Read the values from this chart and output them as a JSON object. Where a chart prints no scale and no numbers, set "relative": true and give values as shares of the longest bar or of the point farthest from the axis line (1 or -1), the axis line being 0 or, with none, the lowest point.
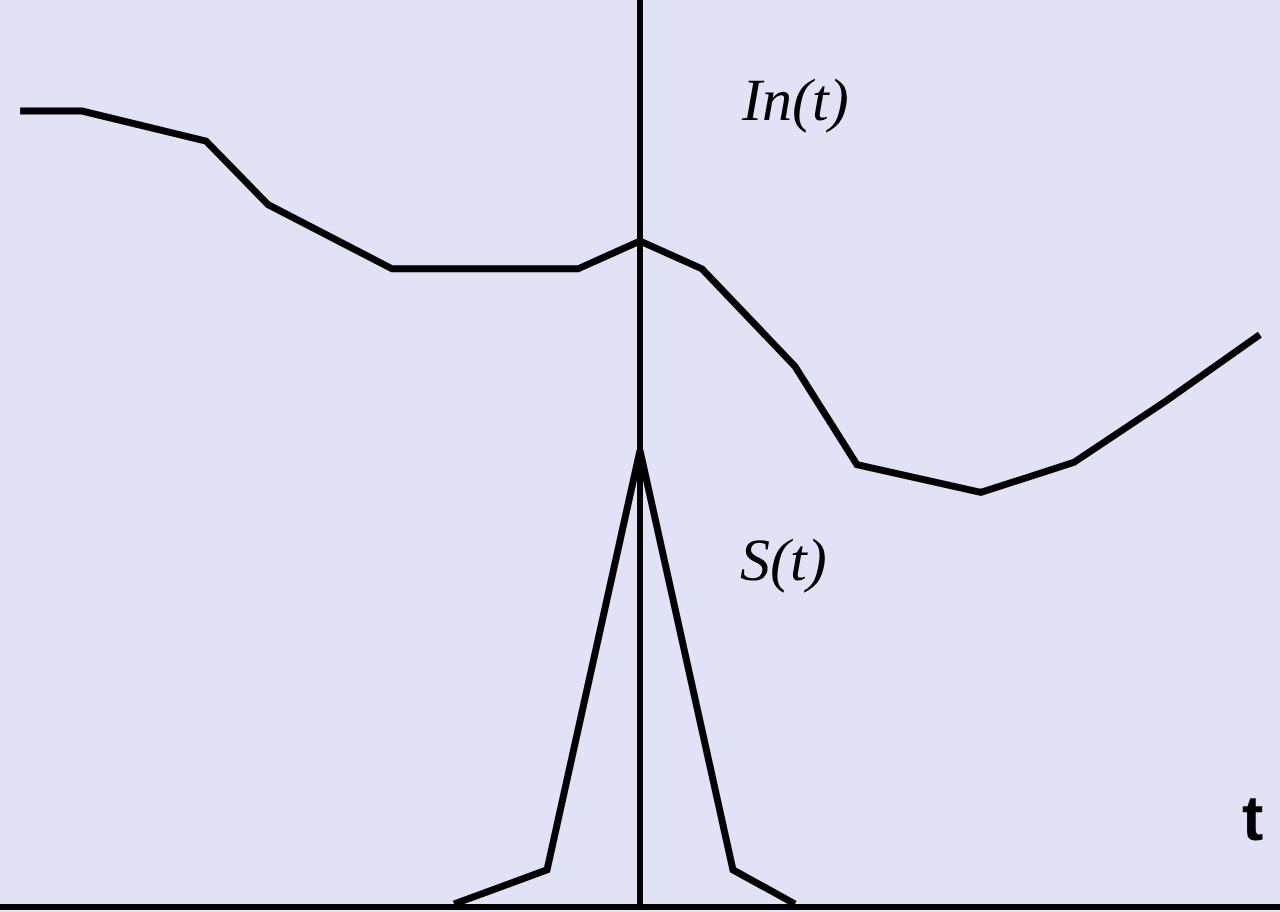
{
  "chart_data": {
    "type": "line",
    "relative": true,
    "xlabel": "t",
    "legend": false,
    "grid": false,
    "categories": [
      null,
      null,
      null,
      null,
      null,
      null,
      null,
      null,
      null,
      null,
      null,
      null,
      null,
      null,
      null,
      null,
      null,
      null,
      null,
      null,
      null,
      null,
      null,
      null,
      null,
      null,
      null,
      null,
      null,
      null,
      null,
      null,
      null,
      null,
      null,
      null,
      null,
      null,
      null,
      null,
      null
    ],
    "series": [
      {
        "name": "In(t)",
        "color": "#000000",
        "values": [
          1.0,
          null,
          1.0,
          null,
          null,
          null,
          0.962,
          null,
          0.882,
          null,
          null,
          null,
          0.801,
          null,
          null,
          null,
          null,
          null,
          0.801,
          null,
          0.836,
          null,
          0.801,
          null,
          null,
          0.678,
          null,
          0.554,
          null,
          null,
          null,
          0.519,
          null,
          null,
          0.557,
          null,
          null,
          0.635,
          null,
          null,
          0.718
        ]
      },
      {
        "name": "S(t)",
        "color": "#000000",
        "values": [
          null,
          null,
          null,
          null,
          null,
          null,
          null,
          null,
          null,
          null,
          null,
          null,
          null,
          null,
          0,
          null,
          null,
          0.043,
          null,
          null,
          0.572,
          null,
          null,
          0.043,
          null,
          0,
          null,
          null,
          null,
          null,
          null,
          null,
          null,
          null,
          null,
          null,
          null,
          null,
          null,
          null,
          null
        ]
      }
    ]
  }
}
